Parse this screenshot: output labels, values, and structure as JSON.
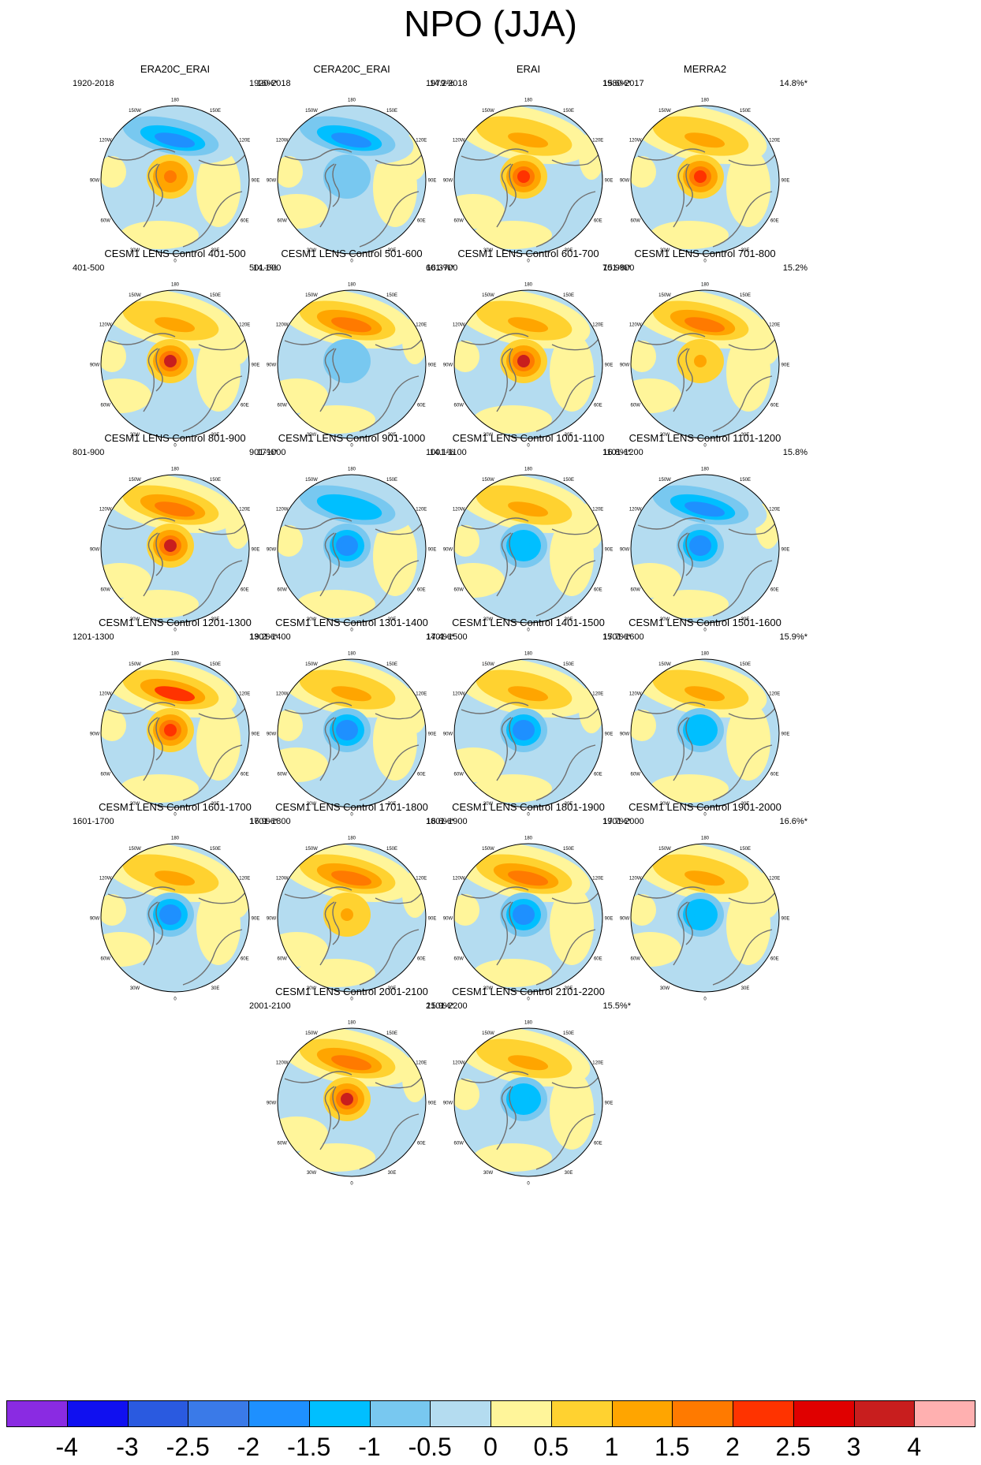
{
  "figure": {
    "title": "NPO (JJA)",
    "map_lon_labels": [
      "180",
      "150W",
      "120W",
      "90W",
      "60W",
      "30W",
      "0",
      "30E",
      "60E",
      "90E",
      "120E",
      "150E"
    ]
  },
  "colorbar": {
    "labels": [
      "-4",
      "-3",
      "-2.5",
      "-2",
      "-1.5",
      "-1",
      "-0.5",
      "0",
      "0.5",
      "1",
      "1.5",
      "2",
      "2.5",
      "3",
      "4"
    ],
    "colors": [
      "#8a2be2",
      "#1010f0",
      "#2a5ae0",
      "#3a7ae8",
      "#1e90ff",
      "#00bfff",
      "#78c8f0",
      "#b4dcf0",
      "#fff59a",
      "#ffd230",
      "#ffa500",
      "#ff7a00",
      "#ff3300",
      "#e00000",
      "#c81e1e",
      "#ffb0b0"
    ]
  },
  "panels": [
    {
      "title": "ERA20C_ERAI",
      "period": "1920-2018",
      "variance": "16%*",
      "pattern": {
        "pac": -2,
        "pole": 1.5
      }
    },
    {
      "title": "CERA20C_ERAI",
      "period": "1920-2018",
      "variance": "14.2%",
      "pattern": {
        "pac": -2,
        "pole": -1
      }
    },
    {
      "title": "ERAI",
      "period": "1979-2018",
      "variance": "15.6%*",
      "pattern": {
        "pac": 1,
        "pole": 2
      }
    },
    {
      "title": "MERRA2",
      "period": "1980-2017",
      "variance": "14.8%*",
      "pattern": {
        "pac": 1,
        "pole": 2
      }
    },
    {
      "title": "CESM1 LENS Control 401-500",
      "period": "401-500",
      "variance": "14.1%",
      "pattern": {
        "pac": 1,
        "pole": 3
      }
    },
    {
      "title": "CESM1 LENS Control 501-600",
      "period": "501-600",
      "variance": "16.3%*",
      "pattern": {
        "pac": 1.5,
        "pole": -1
      }
    },
    {
      "title": "CESM1 LENS Control 601-700",
      "period": "601-700",
      "variance": "15.9%*",
      "pattern": {
        "pac": 1,
        "pole": 3
      }
    },
    {
      "title": "CESM1 LENS Control 701-800",
      "period": "701-800",
      "variance": "15.2%",
      "pattern": {
        "pac": 1.5,
        "pole": 1
      }
    },
    {
      "title": "CESM1 LENS Control 801-900",
      "period": "801-900",
      "variance": "17%*",
      "pattern": {
        "pac": 1.5,
        "pole": 3
      }
    },
    {
      "title": "CESM1 LENS Control 901-1000",
      "period": "901-1000",
      "variance": "14.1%",
      "pattern": {
        "pac": -1.5,
        "pole": -2
      }
    },
    {
      "title": "CESM1 LENS Control 1001-1100",
      "period": "1001-1100",
      "variance": "16.8%*",
      "pattern": {
        "pac": 1,
        "pole": -1.5
      }
    },
    {
      "title": "CESM1 LENS Control 1101-1200",
      "period": "1101-1200",
      "variance": "15.8%",
      "pattern": {
        "pac": -2,
        "pole": -2
      }
    },
    {
      "title": "CESM1 LENS Control 1201-1300",
      "period": "1201-1300",
      "variance": "19.2%*",
      "pattern": {
        "pac": 2,
        "pole": 2
      }
    },
    {
      "title": "CESM1 LENS Control 1301-1400",
      "period": "1301-1400",
      "variance": "17.4%*",
      "pattern": {
        "pac": 1,
        "pole": -2
      }
    },
    {
      "title": "CESM1 LENS Control 1401-1500",
      "period": "1401-1500",
      "variance": "17.7%*",
      "pattern": {
        "pac": 1,
        "pole": -2
      }
    },
    {
      "title": "CESM1 LENS Control 1501-1600",
      "period": "1501-1600",
      "variance": "15.9%*",
      "pattern": {
        "pac": 1,
        "pole": -1.5
      }
    },
    {
      "title": "CESM1 LENS Control 1601-1700",
      "period": "1601-1700",
      "variance": "16.9%*",
      "pattern": {
        "pac": 1,
        "pole": -2
      }
    },
    {
      "title": "CESM1 LENS Control 1701-1800",
      "period": "1701-1800",
      "variance": "16.6%*",
      "pattern": {
        "pac": 1.5,
        "pole": 1
      }
    },
    {
      "title": "CESM1 LENS Control 1801-1900",
      "period": "1801-1900",
      "variance": "17.7%*",
      "pattern": {
        "pac": 1.5,
        "pole": -2
      }
    },
    {
      "title": "CESM1 LENS Control 1901-2000",
      "period": "1901-2000",
      "variance": "16.6%*",
      "pattern": {
        "pac": 1,
        "pole": -1.5
      }
    },
    {
      "title": "CESM1 LENS Control 2001-2100",
      "period": "2001-2100",
      "variance": "15.9%*",
      "pattern": {
        "pac": 1.5,
        "pole": 3
      }
    },
    {
      "title": "CESM1 LENS Control 2101-2200",
      "period": "2101-2200",
      "variance": "15.5%*",
      "pattern": {
        "pac": 1,
        "pole": -1.5
      }
    }
  ]
}
